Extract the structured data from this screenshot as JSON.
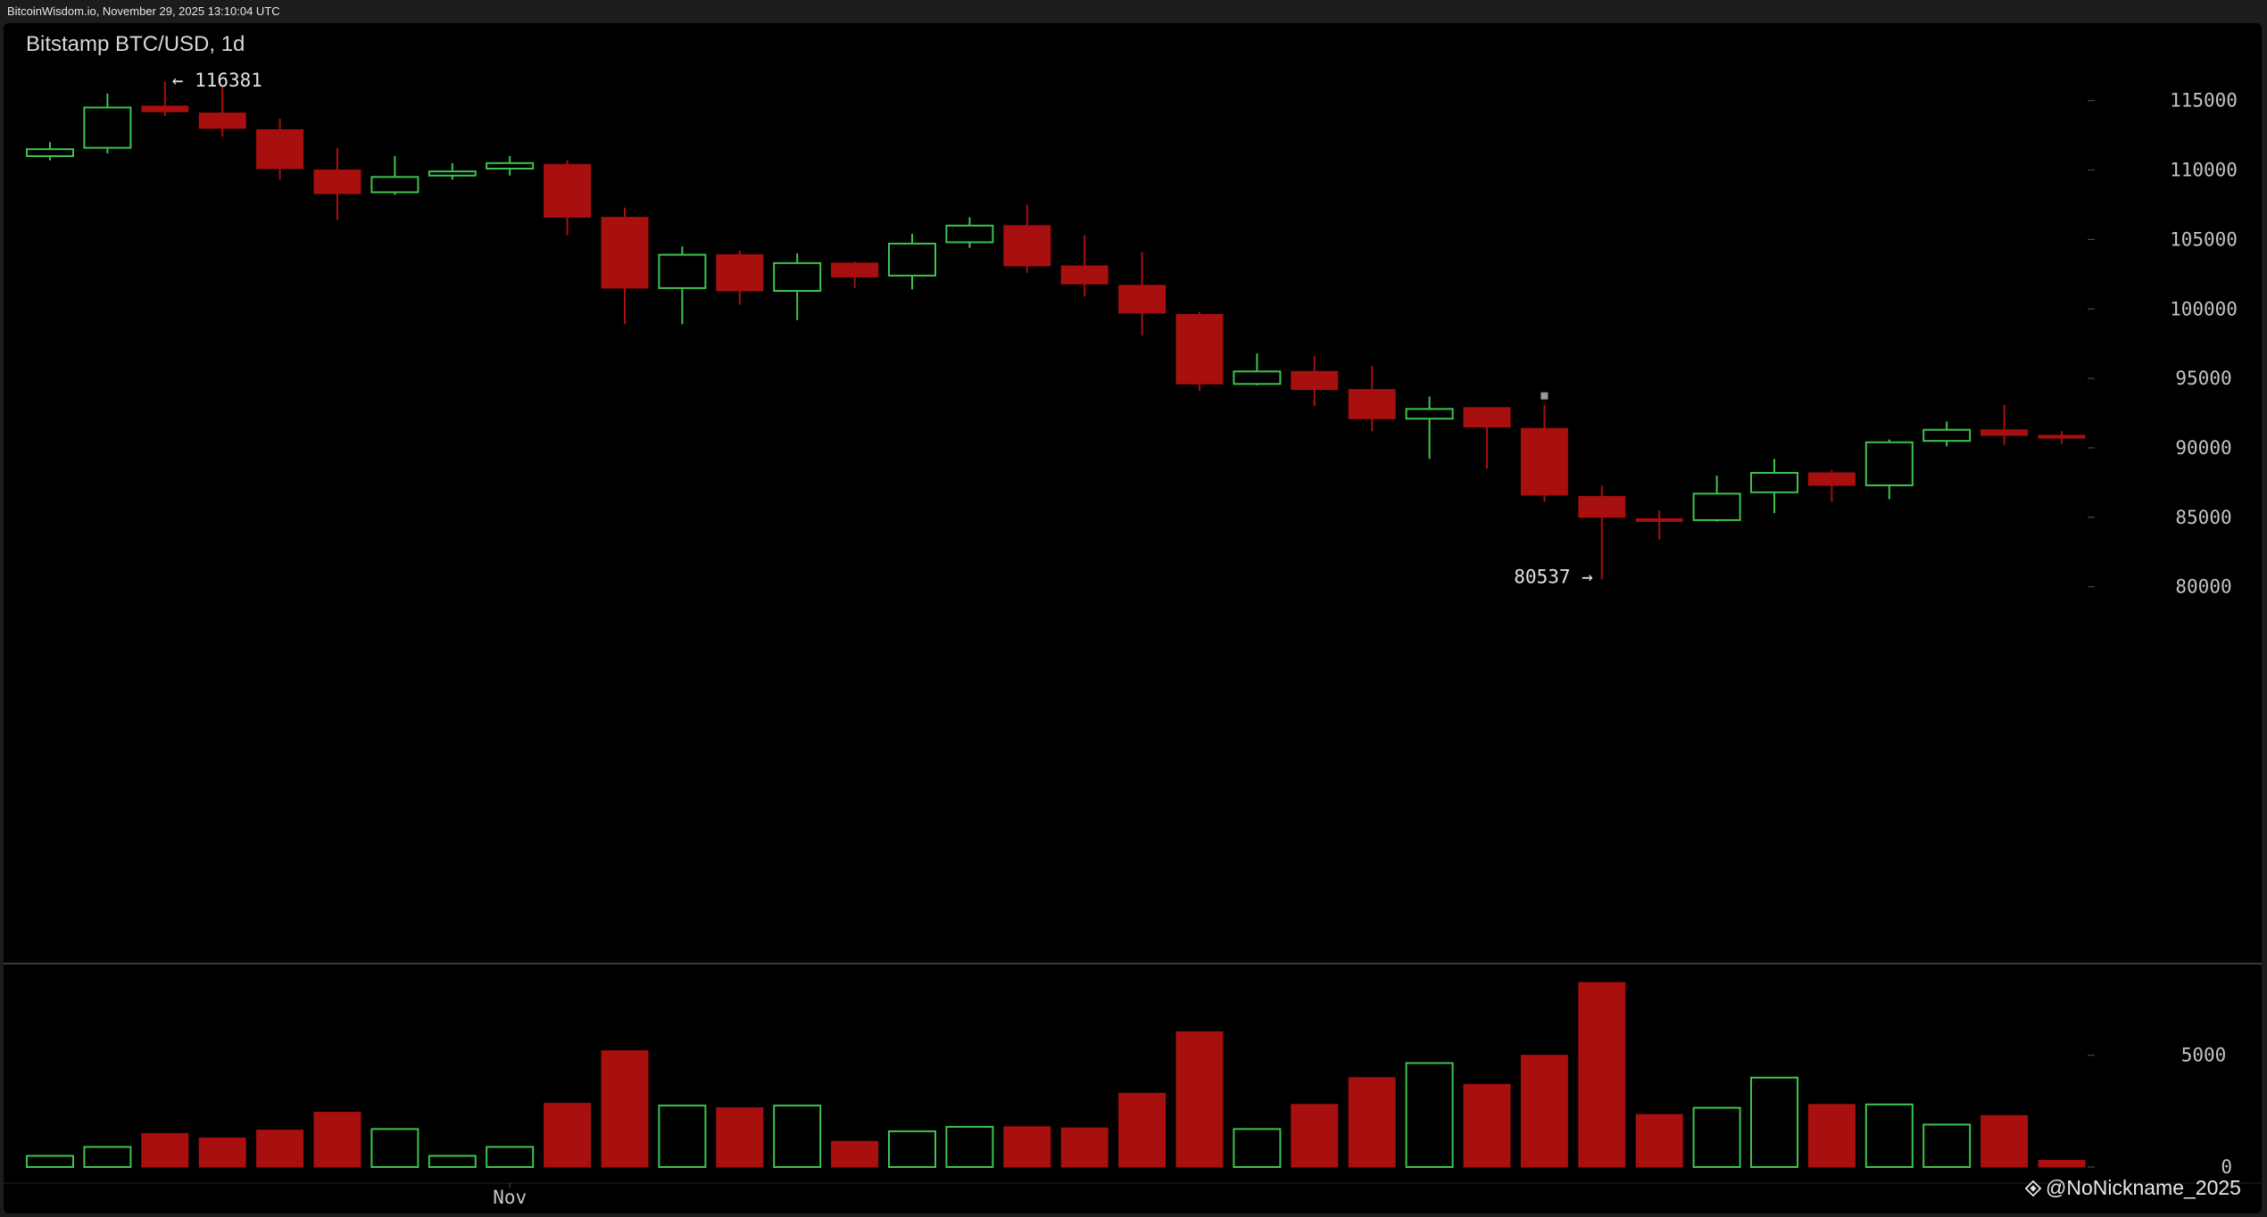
{
  "header": {
    "timestamp": "BitcoinWisdom.io, November 29, 2025 13:10:04 UTC"
  },
  "watermark": {
    "text": "@NoNickname_2025"
  },
  "colors": {
    "background": "#000000",
    "up": "#3ec34e",
    "down": "#a80f0f",
    "axis_text": "#c4c4c4",
    "separator": "#3a3a3a"
  },
  "chart_data": [
    {
      "type": "candlestick",
      "title": "Bitstamp BTC/USD, 1d",
      "y_axis": {
        "side": "right",
        "ticks": [
          80000,
          85000,
          90000,
          95000,
          100000,
          105000,
          110000,
          115000
        ],
        "range": [
          78500,
          118000
        ]
      },
      "x_axis": {
        "labels": [
          {
            "text": "Nov",
            "index": 8
          }
        ]
      },
      "candles": [
        {
          "o": 111000,
          "h": 112000,
          "l": 110700,
          "c": 111500
        },
        {
          "o": 111600,
          "h": 115500,
          "l": 111200,
          "c": 114500
        },
        {
          "o": 114600,
          "h": 116381,
          "l": 113900,
          "c": 114200
        },
        {
          "o": 114100,
          "h": 116100,
          "l": 112400,
          "c": 113000
        },
        {
          "o": 112900,
          "h": 113700,
          "l": 109300,
          "c": 110100
        },
        {
          "o": 110000,
          "h": 111600,
          "l": 106400,
          "c": 108300
        },
        {
          "o": 108400,
          "h": 111000,
          "l": 108200,
          "c": 109500
        },
        {
          "o": 109600,
          "h": 110500,
          "l": 109300,
          "c": 109900
        },
        {
          "o": 110100,
          "h": 111000,
          "l": 109600,
          "c": 110500
        },
        {
          "o": 110400,
          "h": 110700,
          "l": 105300,
          "c": 106600
        },
        {
          "o": 106600,
          "h": 107300,
          "l": 98900,
          "c": 101500
        },
        {
          "o": 101500,
          "h": 104500,
          "l": 98900,
          "c": 103900
        },
        {
          "o": 103900,
          "h": 104200,
          "l": 100300,
          "c": 101300
        },
        {
          "o": 101300,
          "h": 104000,
          "l": 99200,
          "c": 103300
        },
        {
          "o": 103300,
          "h": 103400,
          "l": 101500,
          "c": 102300
        },
        {
          "o": 102400,
          "h": 105400,
          "l": 101400,
          "c": 104700
        },
        {
          "o": 104800,
          "h": 106600,
          "l": 104400,
          "c": 106000
        },
        {
          "o": 106000,
          "h": 107500,
          "l": 102600,
          "c": 103100
        },
        {
          "o": 103100,
          "h": 105300,
          "l": 100900,
          "c": 101800
        },
        {
          "o": 101700,
          "h": 104100,
          "l": 98100,
          "c": 99700
        },
        {
          "o": 99600,
          "h": 99800,
          "l": 94100,
          "c": 94600
        },
        {
          "o": 94600,
          "h": 96800,
          "l": 94500,
          "c": 95500
        },
        {
          "o": 95500,
          "h": 96600,
          "l": 93000,
          "c": 94200
        },
        {
          "o": 94200,
          "h": 95900,
          "l": 91200,
          "c": 92100
        },
        {
          "o": 92100,
          "h": 93700,
          "l": 89200,
          "c": 92800
        },
        {
          "o": 92900,
          "h": 92900,
          "l": 88500,
          "c": 91500
        },
        {
          "o": 91400,
          "h": 93100,
          "l": 86100,
          "c": 86600
        },
        {
          "o": 86500,
          "h": 87300,
          "l": 80537,
          "c": 85000
        },
        {
          "o": 84900,
          "h": 85500,
          "l": 83400,
          "c": 84700
        },
        {
          "o": 84800,
          "h": 88000,
          "l": 84700,
          "c": 86700
        },
        {
          "o": 86800,
          "h": 89200,
          "l": 85300,
          "c": 88200
        },
        {
          "o": 88200,
          "h": 88400,
          "l": 86100,
          "c": 87300
        },
        {
          "o": 87300,
          "h": 90600,
          "l": 86300,
          "c": 90400
        },
        {
          "o": 90500,
          "h": 91900,
          "l": 90100,
          "c": 91300
        },
        {
          "o": 91300,
          "h": 93100,
          "l": 90200,
          "c": 90900
        },
        {
          "o": 90900,
          "h": 91200,
          "l": 90300,
          "c": 90700
        }
      ],
      "annotations": [
        {
          "text": "← 116381",
          "index": 2,
          "value": 116381,
          "anchor": "left"
        },
        {
          "text": "80537 →",
          "index": 27,
          "value": 80537,
          "anchor": "right"
        }
      ]
    },
    {
      "type": "bar",
      "title": "",
      "y_axis": {
        "side": "right",
        "ticks": [
          0,
          5000
        ],
        "range": [
          0,
          8300
        ]
      },
      "values": [
        500,
        900,
        1500,
        1300,
        1650,
        2450,
        1700,
        500,
        900,
        2850,
        5200,
        2750,
        2650,
        2750,
        1150,
        1600,
        1800,
        1800,
        1750,
        3300,
        6050,
        1700,
        2800,
        4000,
        4650,
        3700,
        5000,
        8250,
        2350,
        2650,
        4000,
        2800,
        2800,
        1900,
        2300,
        300
      ],
      "direction": [
        "up",
        "up",
        "down",
        "down",
        "down",
        "down",
        "up",
        "up",
        "up",
        "down",
        "down",
        "up",
        "down",
        "up",
        "down",
        "up",
        "up",
        "down",
        "down",
        "down",
        "down",
        "up",
        "down",
        "down",
        "up",
        "down",
        "down",
        "down",
        "down",
        "up",
        "up",
        "down",
        "up",
        "up",
        "down",
        "down"
      ]
    }
  ]
}
